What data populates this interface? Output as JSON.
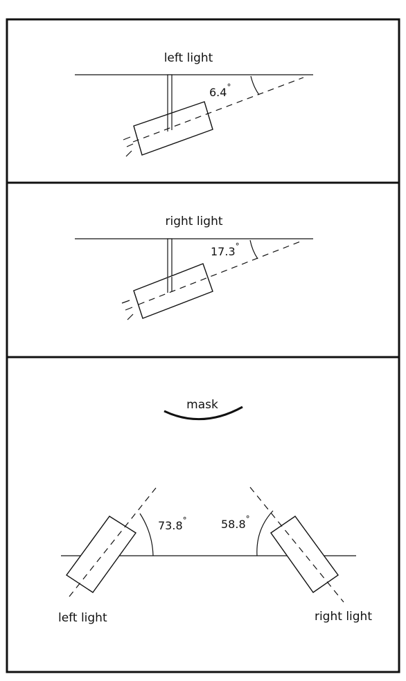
{
  "panels": {
    "top": {
      "title": "left light",
      "angle": "6.4",
      "degree_symbol": "°"
    },
    "middle": {
      "title": "right light",
      "angle": "17.3",
      "degree_symbol": "°"
    },
    "bottom": {
      "mask_label": "mask",
      "left_angle": "73.8",
      "right_angle": "58.8",
      "degree_symbol": "°",
      "left_label": "left light",
      "right_label": "right light"
    }
  },
  "colors": {
    "stroke": "#111111",
    "background": "#ffffff"
  }
}
